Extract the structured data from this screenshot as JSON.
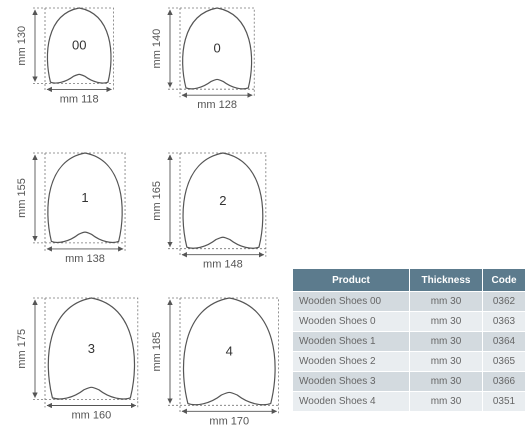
{
  "shoes": [
    {
      "label": "00",
      "height": "mm 130",
      "width": "mm 118",
      "w": 118,
      "h": 130
    },
    {
      "label": "0",
      "height": "mm 140",
      "width": "mm 128",
      "w": 128,
      "h": 140
    },
    {
      "label": "1",
      "height": "mm 155",
      "width": "mm 138",
      "w": 138,
      "h": 155
    },
    {
      "label": "2",
      "height": "mm 165",
      "width": "mm 148",
      "w": 148,
      "h": 165
    },
    {
      "label": "3",
      "height": "mm 175",
      "width": "mm 160",
      "w": 160,
      "h": 175
    },
    {
      "label": "4",
      "height": "mm 185",
      "width": "mm 170",
      "w": 170,
      "h": 185
    }
  ],
  "table": {
    "headers": [
      "Product",
      "Thickness",
      "Code"
    ],
    "rows": [
      [
        "Wooden Shoes 00",
        "mm 30",
        "0362"
      ],
      [
        "Wooden Shoes 0",
        "mm 30",
        "0363"
      ],
      [
        "Wooden Shoes 1",
        "mm 30",
        "0364"
      ],
      [
        "Wooden Shoes 2",
        "mm 30",
        "0365"
      ],
      [
        "Wooden Shoes 3",
        "mm 30",
        "0366"
      ],
      [
        "Wooden Shoes 4",
        "mm 30",
        "0351"
      ]
    ]
  }
}
